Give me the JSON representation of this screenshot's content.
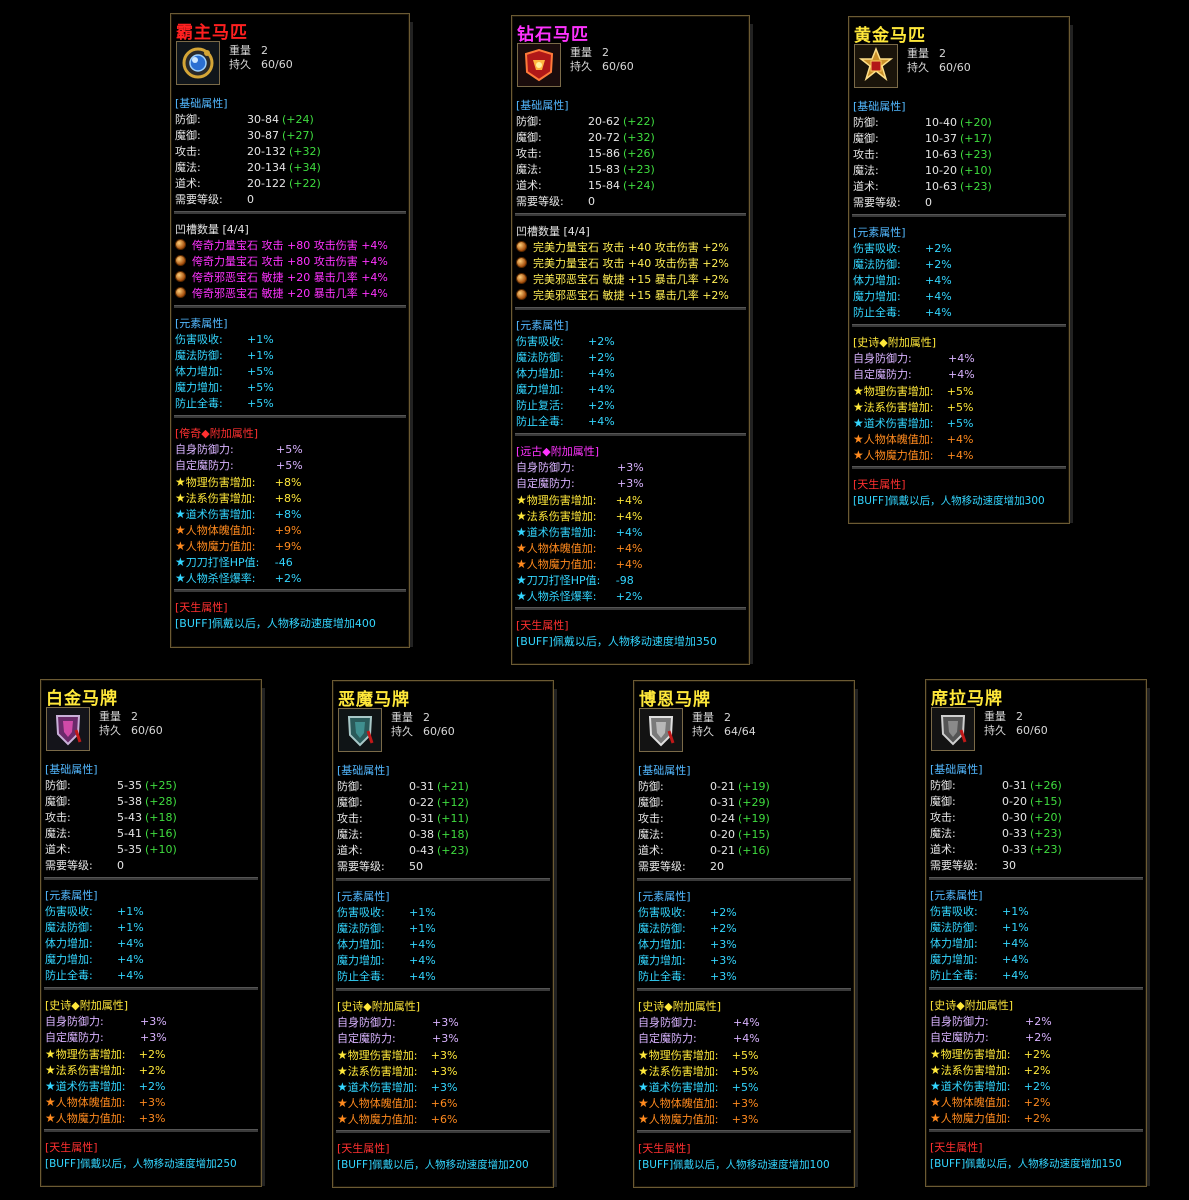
{
  "cards": [
    {
      "title": "霸主马匹",
      "title_color": "#ff2020",
      "weight_label": "重量",
      "weight": "2",
      "dur_label": "持久",
      "dur": "60/60",
      "icon": "orb-icon",
      "base_header": "[基础属性]",
      "base": [
        {
          "label": "防御:",
          "value": "30-84",
          "bonus": "(+24)"
        },
        {
          "label": "魔御:",
          "value": "30-87",
          "bonus": "(+27)"
        },
        {
          "label": "攻击:",
          "value": "20-132",
          "bonus": "(+32)"
        },
        {
          "label": "魔法:",
          "value": "20-134",
          "bonus": "(+34)"
        },
        {
          "label": "道术:",
          "value": "20-122",
          "bonus": "(+22)"
        }
      ],
      "level_label": "需要等级:",
      "level": "0",
      "slots_header": "凹槽数量 [4/4]",
      "slot_color": "#ff33ff",
      "slots": [
        "侉奇力量宝石 攻击 +80 攻击伤害 +4%",
        "侉奇力量宝石 攻击 +80 攻击伤害 +4%",
        "侉奇邪恶宝石 敏捷 +20 暴击几率 +4%",
        "侉奇邪恶宝石 敏捷 +20 暴击几率 +4%"
      ],
      "elem_header": "[元素属性]",
      "elem": [
        {
          "label": "伤害吸收:",
          "value": "+1%"
        },
        {
          "label": "魔法防御:",
          "value": "+1%"
        },
        {
          "label": "体力增加:",
          "value": "+5%"
        },
        {
          "label": "魔力增加:",
          "value": "+5%"
        },
        {
          "label": "防止全毒:",
          "value": "+5%"
        }
      ],
      "extra_header": "[侉奇◆附加属性]",
      "extra_header_color": "#ff3030",
      "extra": [
        {
          "label": "自身防御力:",
          "value": "+5%",
          "color": "#d9b3ff",
          "star": ""
        },
        {
          "label": "自定魔防力:",
          "value": "+5%",
          "color": "#d9b3ff",
          "star": ""
        },
        {
          "label": "物理伤害增加:",
          "value": "+8%",
          "color": "#ffe83a",
          "star": "★"
        },
        {
          "label": "法系伤害增加:",
          "value": "+8%",
          "color": "#ffe83a",
          "star": "★"
        },
        {
          "label": "道术伤害增加:",
          "value": "+8%",
          "color": "#33d6ff",
          "star": "★"
        },
        {
          "label": "人物体魄值加:",
          "value": "+9%",
          "color": "#ff8a1e",
          "star": "★"
        },
        {
          "label": "人物魔力值加:",
          "value": "+9%",
          "color": "#ff8a1e",
          "star": "★"
        },
        {
          "label": "刀刀打怪HP值:",
          "value": "-46",
          "color": "#33d6ff",
          "star": "★"
        },
        {
          "label": "人物杀怪爆率:",
          "value": "+2%",
          "color": "#33d6ff",
          "star": "★"
        }
      ],
      "innate_header": "[天生属性]",
      "buff": "[BUFF]佩戴以后，人物移动速度增加400"
    },
    {
      "title": "钻石马匹",
      "title_color": "#ff33ff",
      "weight_label": "重量",
      "weight": "2",
      "dur_label": "持久",
      "dur": "60/60",
      "icon": "red-crest-icon",
      "base_header": "[基础属性]",
      "base": [
        {
          "label": "防御:",
          "value": "20-62",
          "bonus": "(+22)"
        },
        {
          "label": "魔御:",
          "value": "20-72",
          "bonus": "(+32)"
        },
        {
          "label": "攻击:",
          "value": "15-86",
          "bonus": "(+26)"
        },
        {
          "label": "魔法:",
          "value": "15-83",
          "bonus": "(+23)"
        },
        {
          "label": "道术:",
          "value": "15-84",
          "bonus": "(+24)"
        }
      ],
      "level_label": "需要等级:",
      "level": "0",
      "slots_header": "凹槽数量 [4/4]",
      "slot_color": "#ffee55",
      "slots": [
        "完美力量宝石 攻击 +40 攻击伤害 +2%",
        "完美力量宝石 攻击 +40 攻击伤害 +2%",
        "完美邪恶宝石 敏捷 +15 暴击几率 +2%",
        "完美邪恶宝石 敏捷 +15 暴击几率 +2%"
      ],
      "elem_header": "[元素属性]",
      "elem": [
        {
          "label": "伤害吸收:",
          "value": "+2%"
        },
        {
          "label": "魔法防御:",
          "value": "+2%"
        },
        {
          "label": "体力增加:",
          "value": "+4%"
        },
        {
          "label": "魔力增加:",
          "value": "+4%"
        },
        {
          "label": "防止复活:",
          "value": "+2%"
        },
        {
          "label": "防止全毒:",
          "value": "+4%"
        }
      ],
      "extra_header": "[远古◆附加属性]",
      "extra_header_color": "#ff33ff",
      "extra": [
        {
          "label": "自身防御力:",
          "value": "+3%",
          "color": "#d9b3ff",
          "star": ""
        },
        {
          "label": "自定魔防力:",
          "value": "+3%",
          "color": "#d9b3ff",
          "star": ""
        },
        {
          "label": "物理伤害增加:",
          "value": "+4%",
          "color": "#ffe83a",
          "star": "★"
        },
        {
          "label": "法系伤害增加:",
          "value": "+4%",
          "color": "#ffe83a",
          "star": "★"
        },
        {
          "label": "道术伤害增加:",
          "value": "+4%",
          "color": "#33d6ff",
          "star": "★"
        },
        {
          "label": "人物体魄值加:",
          "value": "+4%",
          "color": "#ff8a1e",
          "star": "★"
        },
        {
          "label": "人物魔力值加:",
          "value": "+4%",
          "color": "#ff8a1e",
          "star": "★"
        },
        {
          "label": "刀刀打怪HP值:",
          "value": "-98",
          "color": "#33d6ff",
          "star": "★"
        },
        {
          "label": "人物杀怪爆率:",
          "value": "+2%",
          "color": "#33d6ff",
          "star": "★"
        }
      ],
      "innate_header": "[天生属性]",
      "buff": "[BUFF]佩戴以后，人物移动速度增加350"
    },
    {
      "title": "黄金马匹",
      "title_color": "#ffe83a",
      "weight_label": "重量",
      "weight": "2",
      "dur_label": "持久",
      "dur": "60/60",
      "icon": "gold-crest-icon",
      "base_header": "[基础属性]",
      "base": [
        {
          "label": "防御:",
          "value": "10-40",
          "bonus": "(+20)"
        },
        {
          "label": "魔御:",
          "value": "10-37",
          "bonus": "(+17)"
        },
        {
          "label": "攻击:",
          "value": "10-63",
          "bonus": "(+23)"
        },
        {
          "label": "魔法:",
          "value": "10-20",
          "bonus": "(+10)"
        },
        {
          "label": "道术:",
          "value": "10-63",
          "bonus": "(+23)"
        }
      ],
      "level_label": "需要等级:",
      "level": "0",
      "elem_header": "[元素属性]",
      "elem": [
        {
          "label": "伤害吸收:",
          "value": "+2%"
        },
        {
          "label": "魔法防御:",
          "value": "+2%"
        },
        {
          "label": "体力增加:",
          "value": "+4%"
        },
        {
          "label": "魔力增加:",
          "value": "+4%"
        },
        {
          "label": "防止全毒:",
          "value": "+4%"
        }
      ],
      "extra_header": "[史诗◆附加属性]",
      "extra_header_color": "#ffe83a",
      "extra": [
        {
          "label": "自身防御力:",
          "value": "+4%",
          "color": "#d9b3ff",
          "star": ""
        },
        {
          "label": "自定魔防力:",
          "value": "+4%",
          "color": "#d9b3ff",
          "star": ""
        },
        {
          "label": "物理伤害增加:",
          "value": "+5%",
          "color": "#ffe83a",
          "star": "★"
        },
        {
          "label": "法系伤害增加:",
          "value": "+5%",
          "color": "#ffe83a",
          "star": "★"
        },
        {
          "label": "道术伤害增加:",
          "value": "+5%",
          "color": "#33d6ff",
          "star": "★"
        },
        {
          "label": "人物体魄值加:",
          "value": "+4%",
          "color": "#ff8a1e",
          "star": "★"
        },
        {
          "label": "人物魔力值加:",
          "value": "+4%",
          "color": "#ff8a1e",
          "star": "★"
        }
      ],
      "innate_header": "[天生属性]",
      "buff": "[BUFF]佩戴以后，人物移动速度增加300"
    },
    {
      "title": "白金马牌",
      "title_color": "#ffe83a",
      "weight_label": "重量",
      "weight": "2",
      "dur_label": "持久",
      "dur": "60/60",
      "icon": "purple-shield-icon",
      "base_header": "[基础属性]",
      "base": [
        {
          "label": "防御:",
          "value": "5-35",
          "bonus": "(+25)"
        },
        {
          "label": "魔御:",
          "value": "5-38",
          "bonus": "(+28)"
        },
        {
          "label": "攻击:",
          "value": "5-43",
          "bonus": "(+18)"
        },
        {
          "label": "魔法:",
          "value": "5-41",
          "bonus": "(+16)"
        },
        {
          "label": "道术:",
          "value": "5-35",
          "bonus": "(+10)"
        }
      ],
      "level_label": "需要等级:",
      "level": "0",
      "elem_header": "[元素属性]",
      "elem": [
        {
          "label": "伤害吸收:",
          "value": "+1%"
        },
        {
          "label": "魔法防御:",
          "value": "+1%"
        },
        {
          "label": "体力增加:",
          "value": "+4%"
        },
        {
          "label": "魔力增加:",
          "value": "+4%"
        },
        {
          "label": "防止全毒:",
          "value": "+4%"
        }
      ],
      "extra_header": "[史诗◆附加属性]",
      "extra_header_color": "#ffe83a",
      "extra": [
        {
          "label": "自身防御力:",
          "value": "+3%",
          "color": "#d9b3ff",
          "star": ""
        },
        {
          "label": "自定魔防力:",
          "value": "+3%",
          "color": "#d9b3ff",
          "star": ""
        },
        {
          "label": "物理伤害增加:",
          "value": "+2%",
          "color": "#ffe83a",
          "star": "★"
        },
        {
          "label": "法系伤害增加:",
          "value": "+2%",
          "color": "#ffe83a",
          "star": "★"
        },
        {
          "label": "道术伤害增加:",
          "value": "+2%",
          "color": "#33d6ff",
          "star": "★"
        },
        {
          "label": "人物体魄值加:",
          "value": "+3%",
          "color": "#ff8a1e",
          "star": "★"
        },
        {
          "label": "人物魔力值加:",
          "value": "+3%",
          "color": "#ff8a1e",
          "star": "★"
        }
      ],
      "innate_header": "[天生属性]",
      "buff": "[BUFF]佩戴以后，人物移动速度增加250"
    },
    {
      "title": "恶魔马牌",
      "title_color": "#ffe83a",
      "weight_label": "重量",
      "weight": "2",
      "dur_label": "持久",
      "dur": "60/60",
      "icon": "teal-shield-icon",
      "base_header": "[基础属性]",
      "base": [
        {
          "label": "防御:",
          "value": "0-31",
          "bonus": "(+21)"
        },
        {
          "label": "魔御:",
          "value": "0-22",
          "bonus": "(+12)"
        },
        {
          "label": "攻击:",
          "value": "0-31",
          "bonus": "(+11)"
        },
        {
          "label": "魔法:",
          "value": "0-38",
          "bonus": "(+18)"
        },
        {
          "label": "道术:",
          "value": "0-43",
          "bonus": "(+23)"
        }
      ],
      "level_label": "需要等级:",
      "level": "50",
      "elem_header": "[元素属性]",
      "elem": [
        {
          "label": "伤害吸收:",
          "value": "+1%"
        },
        {
          "label": "魔法防御:",
          "value": "+1%"
        },
        {
          "label": "体力增加:",
          "value": "+4%"
        },
        {
          "label": "魔力增加:",
          "value": "+4%"
        },
        {
          "label": "防止全毒:",
          "value": "+4%"
        }
      ],
      "extra_header": "[史诗◆附加属性]",
      "extra_header_color": "#ffe83a",
      "extra": [
        {
          "label": "自身防御力:",
          "value": "+3%",
          "color": "#d9b3ff",
          "star": ""
        },
        {
          "label": "自定魔防力:",
          "value": "+3%",
          "color": "#d9b3ff",
          "star": ""
        },
        {
          "label": "物理伤害增加:",
          "value": "+3%",
          "color": "#ffe83a",
          "star": "★"
        },
        {
          "label": "法系伤害增加:",
          "value": "+3%",
          "color": "#ffe83a",
          "star": "★"
        },
        {
          "label": "道术伤害增加:",
          "value": "+3%",
          "color": "#33d6ff",
          "star": "★"
        },
        {
          "label": "人物体魄值加:",
          "value": "+6%",
          "color": "#ff8a1e",
          "star": "★"
        },
        {
          "label": "人物魔力值加:",
          "value": "+6%",
          "color": "#ff8a1e",
          "star": "★"
        }
      ],
      "innate_header": "[天生属性]",
      "buff": "[BUFF]佩戴以后，人物移动速度增加200"
    },
    {
      "title": "博恩马牌",
      "title_color": "#ffe83a",
      "weight_label": "重量",
      "weight": "2",
      "dur_label": "持久",
      "dur": "64/64",
      "icon": "silver-shield-icon",
      "base_header": "[基础属性]",
      "base": [
        {
          "label": "防御:",
          "value": "0-21",
          "bonus": "(+19)"
        },
        {
          "label": "魔御:",
          "value": "0-31",
          "bonus": "(+29)"
        },
        {
          "label": "攻击:",
          "value": "0-24",
          "bonus": "(+19)"
        },
        {
          "label": "魔法:",
          "value": "0-20",
          "bonus": "(+15)"
        },
        {
          "label": "道术:",
          "value": "0-21",
          "bonus": "(+16)"
        }
      ],
      "level_label": "需要等级:",
      "level": "20",
      "elem_header": "[元素属性]",
      "elem": [
        {
          "label": "伤害吸收:",
          "value": "+2%"
        },
        {
          "label": "魔法防御:",
          "value": "+2%"
        },
        {
          "label": "体力增加:",
          "value": "+3%"
        },
        {
          "label": "魔力增加:",
          "value": "+3%"
        },
        {
          "label": "防止全毒:",
          "value": "+3%"
        }
      ],
      "extra_header": "[史诗◆附加属性]",
      "extra_header_color": "#ffe83a",
      "extra": [
        {
          "label": "自身防御力:",
          "value": "+4%",
          "color": "#d9b3ff",
          "star": ""
        },
        {
          "label": "自定魔防力:",
          "value": "+4%",
          "color": "#d9b3ff",
          "star": ""
        },
        {
          "label": "物理伤害增加:",
          "value": "+5%",
          "color": "#ffe83a",
          "star": "★"
        },
        {
          "label": "法系伤害增加:",
          "value": "+5%",
          "color": "#ffe83a",
          "star": "★"
        },
        {
          "label": "道术伤害增加:",
          "value": "+5%",
          "color": "#33d6ff",
          "star": "★"
        },
        {
          "label": "人物体魄值加:",
          "value": "+3%",
          "color": "#ff8a1e",
          "star": "★"
        },
        {
          "label": "人物魔力值加:",
          "value": "+3%",
          "color": "#ff8a1e",
          "star": "★"
        }
      ],
      "innate_header": "[天生属性]",
      "buff": "[BUFF]佩戴以后，人物移动速度增加100"
    },
    {
      "title": "席拉马牌",
      "title_color": "#ffe83a",
      "weight_label": "重量",
      "weight": "2",
      "dur_label": "持久",
      "dur": "60/60",
      "icon": "grey-shield-icon",
      "base_header": "[基础属性]",
      "base": [
        {
          "label": "防御:",
          "value": "0-31",
          "bonus": "(+26)"
        },
        {
          "label": "魔御:",
          "value": "0-20",
          "bonus": "(+15)"
        },
        {
          "label": "攻击:",
          "value": "0-30",
          "bonus": "(+20)"
        },
        {
          "label": "魔法:",
          "value": "0-33",
          "bonus": "(+23)"
        },
        {
          "label": "道术:",
          "value": "0-33",
          "bonus": "(+23)"
        }
      ],
      "level_label": "需要等级:",
      "level": "30",
      "elem_header": "[元素属性]",
      "elem": [
        {
          "label": "伤害吸收:",
          "value": "+1%"
        },
        {
          "label": "魔法防御:",
          "value": "+1%"
        },
        {
          "label": "体力增加:",
          "value": "+4%"
        },
        {
          "label": "魔力增加:",
          "value": "+4%"
        },
        {
          "label": "防止全毒:",
          "value": "+4%"
        }
      ],
      "extra_header": "[史诗◆附加属性]",
      "extra_header_color": "#ffe83a",
      "extra": [
        {
          "label": "自身防御力:",
          "value": "+2%",
          "color": "#d9b3ff",
          "star": ""
        },
        {
          "label": "自定魔防力:",
          "value": "+2%",
          "color": "#d9b3ff",
          "star": ""
        },
        {
          "label": "物理伤害增加:",
          "value": "+2%",
          "color": "#ffe83a",
          "star": "★"
        },
        {
          "label": "法系伤害增加:",
          "value": "+2%",
          "color": "#ffe83a",
          "star": "★"
        },
        {
          "label": "道术伤害增加:",
          "value": "+2%",
          "color": "#33d6ff",
          "star": "★"
        },
        {
          "label": "人物体魄值加:",
          "value": "+2%",
          "color": "#ff8a1e",
          "star": "★"
        },
        {
          "label": "人物魔力值加:",
          "value": "+2%",
          "color": "#ff8a1e",
          "star": "★"
        }
      ],
      "innate_header": "[天生属性]",
      "buff": "[BUFF]佩戴以后，人物移动速度增加150"
    }
  ]
}
